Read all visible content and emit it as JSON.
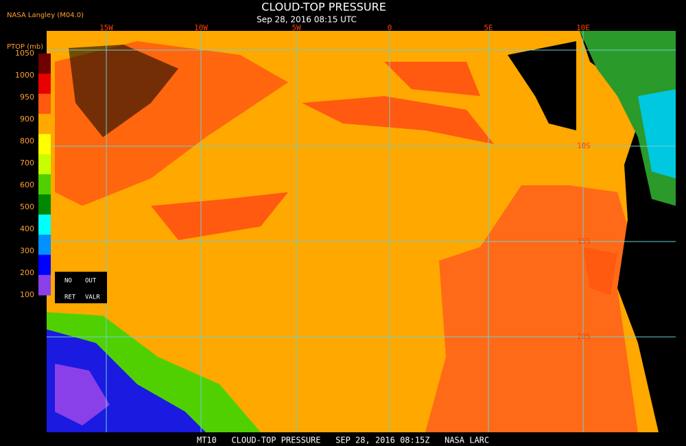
{
  "header": {
    "source": "NASA Langley (M04.0)",
    "title": "CLOUD-TOP PRESSURE",
    "subtitle": "Sep 28, 2016 08:15 UTC"
  },
  "colorbar": {
    "label": "PTOP (mb)",
    "ticks": [
      1050,
      1000,
      950,
      900,
      800,
      700,
      600,
      500,
      400,
      300,
      200,
      100
    ],
    "colors": [
      "#6e0000",
      "#e80000",
      "#ff5a10",
      "#ffa800",
      "#ffff00",
      "#c8ff00",
      "#50d000",
      "#008800",
      "#00ffff",
      "#0090ff",
      "#0000ff",
      "#8a40e8"
    ]
  },
  "legend_box": {
    "cells": [
      "NO",
      "OUT",
      "RET",
      "VALR"
    ]
  },
  "lon_labels": [
    "15W",
    "10W",
    "5W",
    "0",
    "5E",
    "10E"
  ],
  "lat_labels": [
    "10S",
    "15S",
    "20S"
  ],
  "footer": "MT10   CLOUD-TOP PRESSURE   SEP 28, 2016 08:15Z   NASA LARC"
}
